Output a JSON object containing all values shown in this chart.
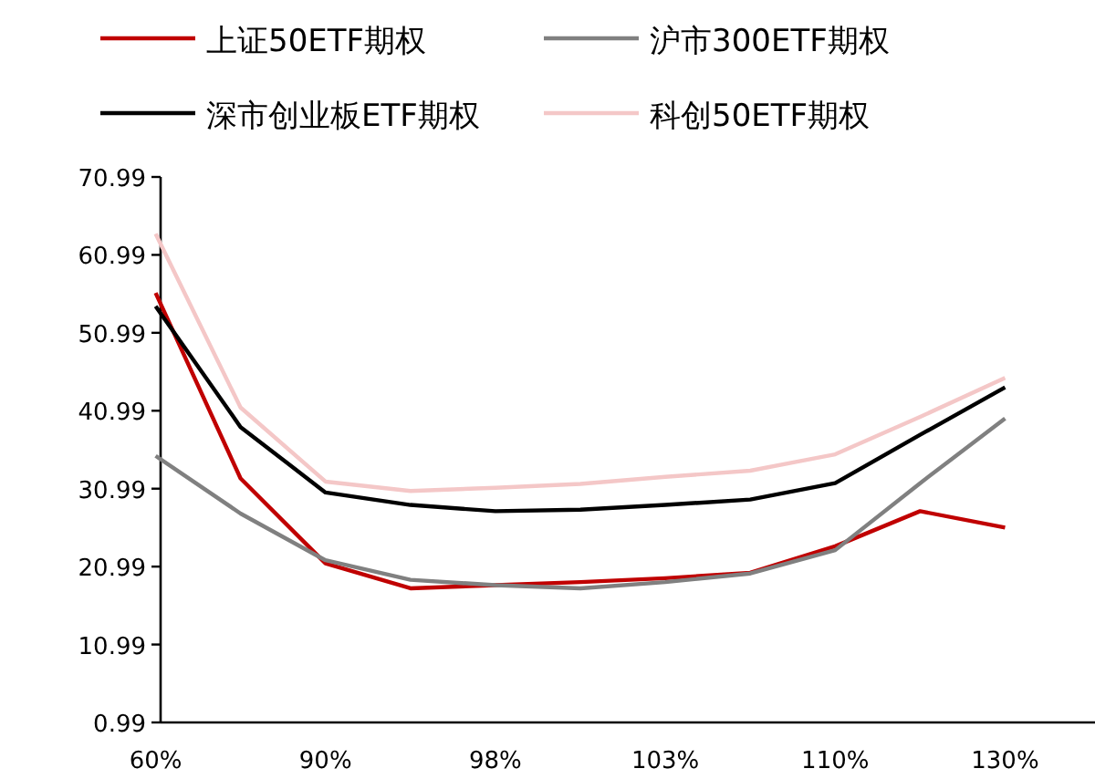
{
  "chart_data": {
    "type": "line",
    "categories": [
      "60%",
      null,
      "90%",
      null,
      "98%",
      null,
      "103%",
      null,
      "110%",
      null,
      "130%"
    ],
    "series": [
      {
        "name": "上证50ETF期权",
        "color": "#c00000",
        "values": [
          56.1,
          32.3,
          21.4,
          18.2,
          18.6,
          19.0,
          19.5,
          20.2,
          23.6,
          28.1,
          26.0
        ]
      },
      {
        "name": "沪市300ETF期权",
        "color": "#808080",
        "values": [
          35.2,
          27.8,
          21.8,
          19.3,
          18.6,
          18.2,
          19.0,
          20.1,
          23.1,
          31.7,
          40.0
        ]
      },
      {
        "name": "深市创业板ETF期权",
        "color": "#000000",
        "values": [
          54.4,
          38.9,
          30.5,
          28.9,
          28.1,
          28.3,
          28.9,
          29.6,
          31.7,
          37.9,
          44.0
        ]
      },
      {
        "name": "科创50ETF期权",
        "color": "#f4c7c7",
        "values": [
          63.7,
          41.4,
          31.9,
          30.7,
          31.1,
          31.6,
          32.5,
          33.3,
          35.4,
          40.2,
          45.2
        ]
      }
    ],
    "ylim": [
      0.99,
      70.99
    ],
    "yticks": [
      0.99,
      10.99,
      20.99,
      30.99,
      40.99,
      50.99,
      60.99,
      70.99
    ],
    "grid": false,
    "legend": "top",
    "marker": "none",
    "line_style": "solid"
  }
}
